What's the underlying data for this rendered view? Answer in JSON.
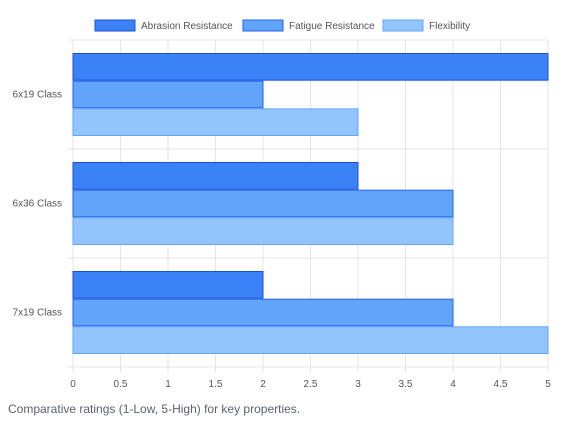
{
  "caption": "Comparative ratings (1-Low, 5-High) for key properties.",
  "chart_data": {
    "type": "bar",
    "orientation": "horizontal",
    "categories": [
      "6x19 Class",
      "6x36 Class",
      "7x19 Class"
    ],
    "series": [
      {
        "name": "Abrasion Resistance",
        "values": [
          5,
          3,
          2
        ],
        "color": "#3b82f6",
        "border": "#1d4ed8"
      },
      {
        "name": "Fatigue Resistance",
        "values": [
          2,
          4,
          4
        ],
        "color": "#60a5fa",
        "border": "#2563eb"
      },
      {
        "name": "Flexibility",
        "values": [
          3,
          4,
          5
        ],
        "color": "#93c5fd",
        "border": "#60a5fa"
      }
    ],
    "xlim": [
      0,
      5
    ],
    "xticks": [
      "0",
      "0.5",
      "1",
      "1.5",
      "2",
      "2.5",
      "3",
      "3.5",
      "4",
      "4.5",
      "5"
    ],
    "xtick_step": 0.5,
    "grid": true,
    "legend": "top"
  }
}
